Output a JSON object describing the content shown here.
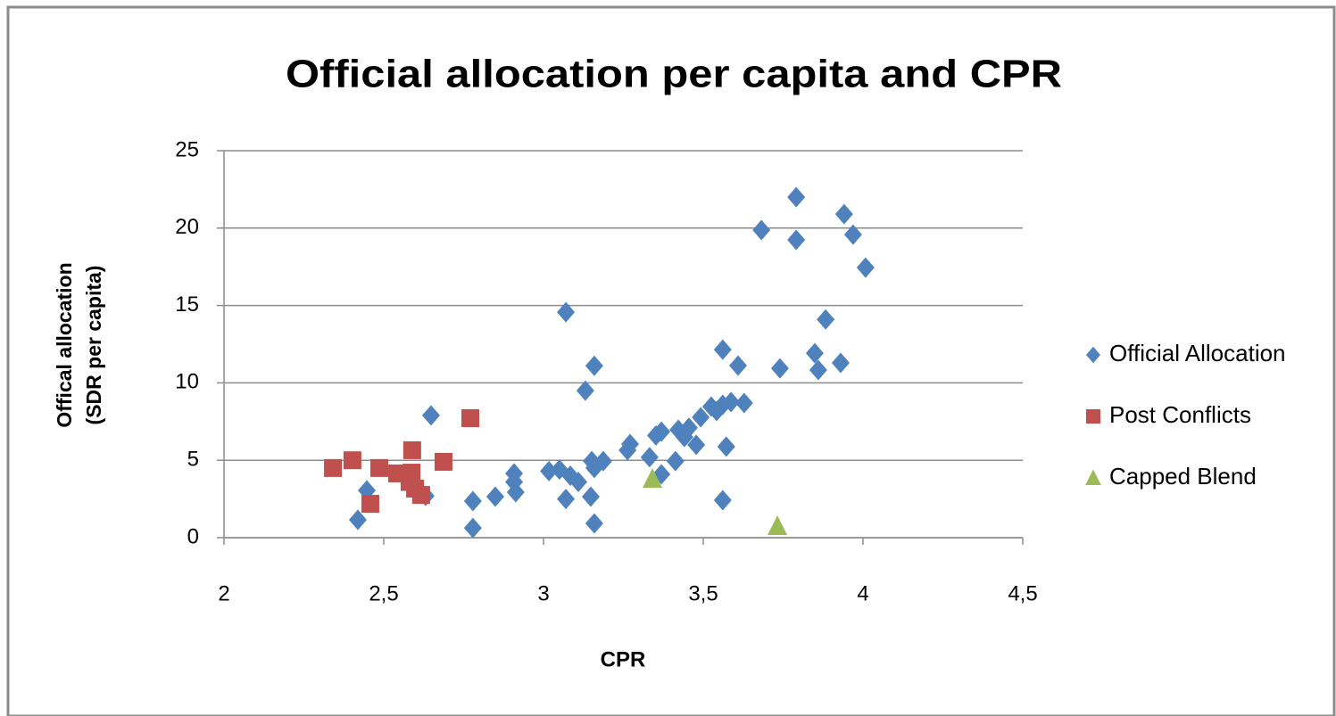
{
  "chart_data": {
    "type": "scatter",
    "title": "Official allocation per capita and CPR",
    "xlabel": "CPR",
    "ylabel": [
      "Offical allocation",
      "(SDR per capita)"
    ],
    "xlim": [
      2,
      4.5
    ],
    "xticks": [
      2,
      {
        "value": 2.5,
        "label": "2,5"
      },
      3,
      {
        "value": 3.5,
        "label": "3,5"
      },
      4,
      {
        "value": 4.5,
        "label": "4,5"
      }
    ],
    "ylim": [
      0,
      25
    ],
    "yticks": [
      0,
      5,
      10,
      15,
      20,
      25
    ],
    "grid": true,
    "legend": "right",
    "series": [
      {
        "name": "Official Allocation",
        "color": "#4f81bd",
        "marker": "diamond",
        "x": [
          2.419,
          2.447,
          2.648,
          2.631,
          2.779,
          2.779,
          2.849,
          2.908,
          2.913,
          2.908,
          3.017,
          3.05,
          3.07,
          3.084,
          3.109,
          3.07,
          3.131,
          3.159,
          3.151,
          3.159,
          3.187,
          3.148,
          3.159,
          3.263,
          3.271,
          3.332,
          3.352,
          3.369,
          3.369,
          3.413,
          3.422,
          3.441,
          3.455,
          3.478,
          3.492,
          3.525,
          3.542,
          3.561,
          3.587,
          3.628,
          3.561,
          3.572,
          3.561,
          3.609,
          3.682,
          3.74,
          3.791,
          3.791,
          3.849,
          3.86,
          3.883,
          3.93,
          3.941,
          3.969,
          4.008
        ],
        "values": [
          1.15,
          3.05,
          7.9,
          2.7,
          2.36,
          0.63,
          2.65,
          4.15,
          2.94,
          3.6,
          4.3,
          4.4,
          2.5,
          4.0,
          3.6,
          14.57,
          9.5,
          11.1,
          4.95,
          4.5,
          4.95,
          2.65,
          0.92,
          5.65,
          6.05,
          5.2,
          6.6,
          6.85,
          4.1,
          4.95,
          6.97,
          6.5,
          7.1,
          6.0,
          7.78,
          8.47,
          8.18,
          8.58,
          8.76,
          8.7,
          12.15,
          5.88,
          2.42,
          11.12,
          19.87,
          10.94,
          22.0,
          19.24,
          11.92,
          10.83,
          14.1,
          11.29,
          20.9,
          19.58,
          17.45
        ]
      },
      {
        "name": "Post Conflicts",
        "color": "#c0504d",
        "marker": "square",
        "x": [
          2.341,
          2.402,
          2.486,
          2.458,
          2.542,
          2.589,
          2.587,
          2.598,
          2.617,
          2.687,
          2.771,
          2.581
        ],
        "values": [
          4.5,
          5.0,
          4.5,
          2.19,
          4.15,
          5.65,
          4.2,
          3.17,
          2.76,
          4.9,
          7.72,
          3.6
        ]
      },
      {
        "name": "Capped Blend",
        "color": "#9bbb59",
        "marker": "triangle",
        "x": [
          3.341,
          3.732
        ],
        "values": [
          3.8,
          0.75
        ]
      }
    ]
  }
}
